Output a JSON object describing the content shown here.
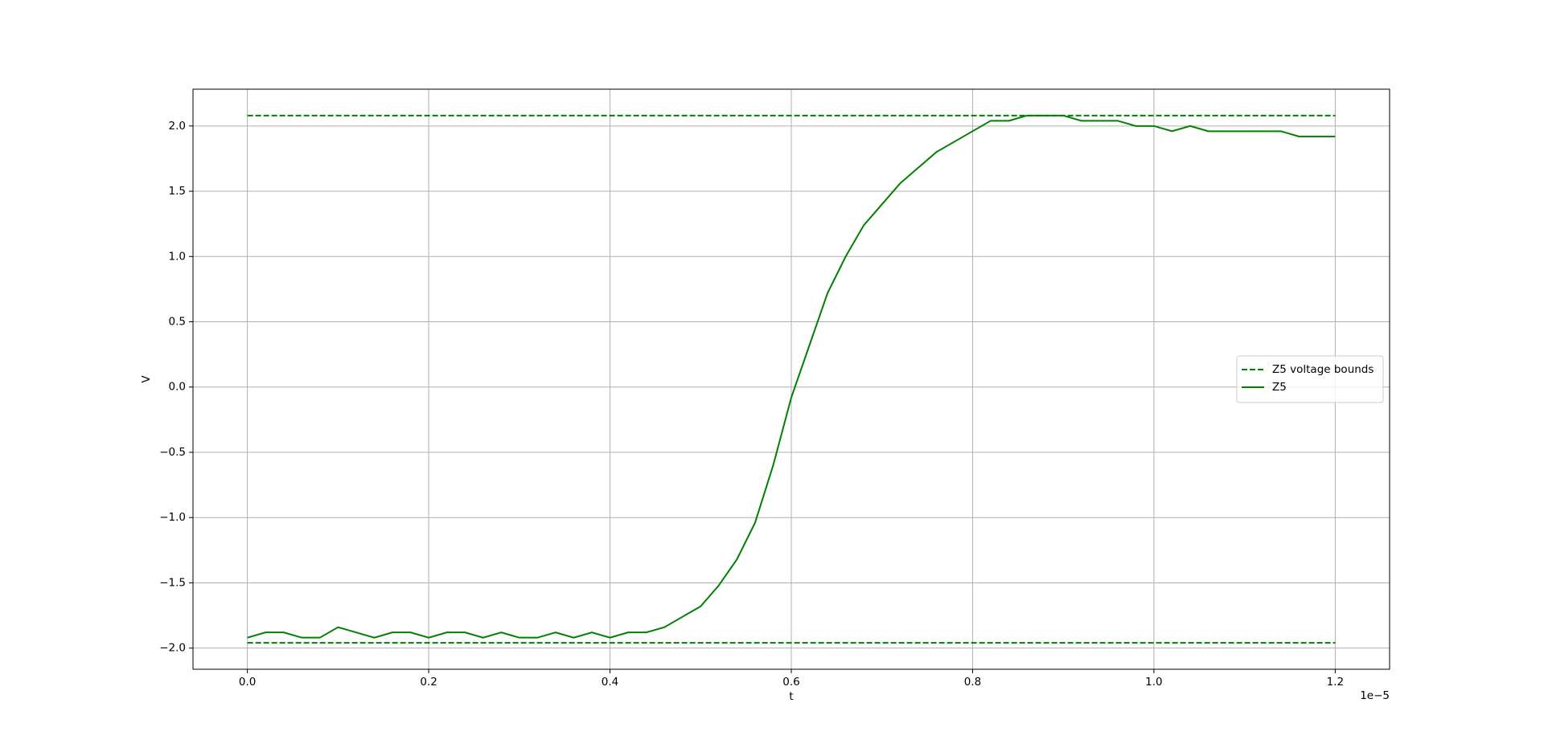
{
  "chart_data": {
    "type": "line",
    "xlabel": "t",
    "ylabel": "V",
    "x_offset_label": "1e−5",
    "xlim": [
      -0.06,
      1.26
    ],
    "ylim": [
      -2.162,
      2.282
    ],
    "xticks": [
      {
        "value": 0,
        "label": "0.0"
      },
      {
        "value": 0.2,
        "label": "0.2"
      },
      {
        "value": 0.4,
        "label": "0.4"
      },
      {
        "value": 0.6,
        "label": "0.6"
      },
      {
        "value": 0.8,
        "label": "0.8"
      },
      {
        "value": 1.0,
        "label": "1.0"
      },
      {
        "value": 1.2,
        "label": "1.2"
      }
    ],
    "yticks": [
      {
        "value": -2,
        "label": "−2.0"
      },
      {
        "value": -1.5,
        "label": "−1.5"
      },
      {
        "value": -1,
        "label": "−1.0"
      },
      {
        "value": -0.5,
        "label": "−0.5"
      },
      {
        "value": 0,
        "label": "0.0"
      },
      {
        "value": 0.5,
        "label": "0.5"
      },
      {
        "value": 1,
        "label": "1.0"
      },
      {
        "value": 1.5,
        "label": "1.5"
      },
      {
        "value": 2,
        "label": "2.0"
      }
    ],
    "grid": true,
    "legend": "center right",
    "series": [
      {
        "name": "Z5 voltage bounds",
        "color": "#008000",
        "dashed": true,
        "x": [
          0,
          1.2
        ],
        "upper": [
          2.08,
          2.08
        ],
        "lower": [
          -1.96,
          -1.96
        ]
      },
      {
        "name": "Z5",
        "color": "#008000",
        "dashed": false,
        "x": [
          0,
          0.02,
          0.04,
          0.06,
          0.08,
          0.1,
          0.12,
          0.14,
          0.16,
          0.18,
          0.2,
          0.22,
          0.24,
          0.26,
          0.28,
          0.3,
          0.32,
          0.34,
          0.36,
          0.38,
          0.4,
          0.42,
          0.44,
          0.46,
          0.48,
          0.5,
          0.52,
          0.54,
          0.56,
          0.58,
          0.6,
          0.62,
          0.64,
          0.66,
          0.68,
          0.7,
          0.72,
          0.74,
          0.76,
          0.78,
          0.8,
          0.82,
          0.84,
          0.86,
          0.88,
          0.9,
          0.92,
          0.94,
          0.96,
          0.98,
          1.0,
          1.02,
          1.04,
          1.06,
          1.08,
          1.1,
          1.12,
          1.14,
          1.16,
          1.18,
          1.2
        ],
        "values": [
          -1.92,
          -1.88,
          -1.88,
          -1.92,
          -1.92,
          -1.84,
          -1.88,
          -1.92,
          -1.88,
          -1.88,
          -1.92,
          -1.88,
          -1.88,
          -1.92,
          -1.88,
          -1.92,
          -1.92,
          -1.88,
          -1.92,
          -1.88,
          -1.92,
          -1.88,
          -1.88,
          -1.84,
          -1.76,
          -1.68,
          -1.52,
          -1.32,
          -1.04,
          -0.6,
          -0.08,
          0.32,
          0.72,
          1.0,
          1.24,
          1.4,
          1.56,
          1.68,
          1.8,
          1.88,
          1.96,
          2.04,
          2.04,
          2.08,
          2.08,
          2.08,
          2.04,
          2.04,
          2.04,
          2.0,
          2.0,
          1.96,
          2.0,
          1.96,
          1.96,
          1.96,
          1.96,
          1.96,
          1.92,
          1.92,
          1.92
        ]
      }
    ]
  }
}
